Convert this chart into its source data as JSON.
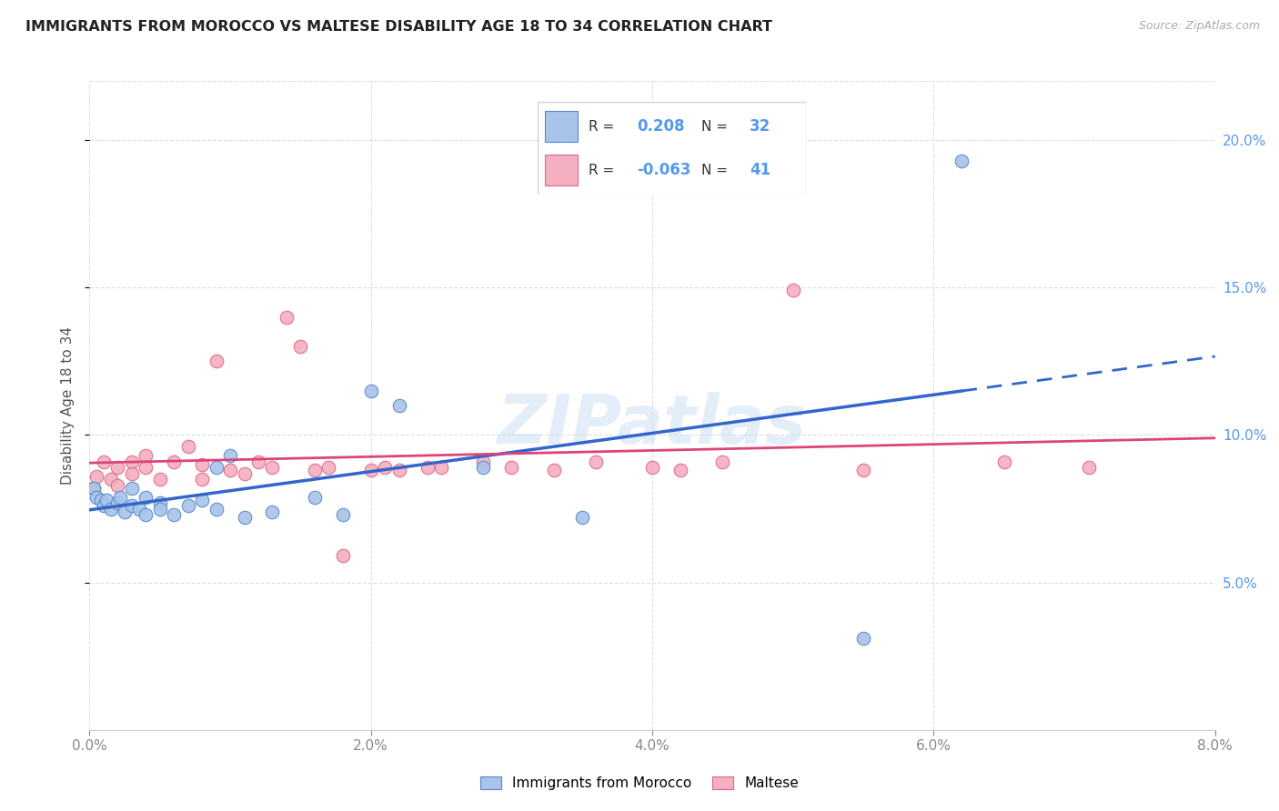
{
  "title": "IMMIGRANTS FROM MOROCCO VS MALTESE DISABILITY AGE 18 TO 34 CORRELATION CHART",
  "source": "Source: ZipAtlas.com",
  "ylabel": "Disability Age 18 to 34",
  "xlim": [
    0.0,
    0.08
  ],
  "ylim": [
    0.0,
    0.22
  ],
  "x_ticks": [
    0.0,
    0.02,
    0.04,
    0.06,
    0.08
  ],
  "y_ticks": [
    0.05,
    0.1,
    0.15,
    0.2
  ],
  "r_morocco": 0.208,
  "n_morocco": 32,
  "r_maltese": -0.063,
  "n_maltese": 41,
  "color_morocco": "#a8c4e8",
  "color_maltese": "#f4afc0",
  "edge_morocco": "#5588cc",
  "edge_maltese": "#dd6688",
  "trendline_morocco": "#3366cc",
  "trendline_maltese": "#dd4477",
  "morocco_x": [
    0.0003,
    0.0005,
    0.0008,
    0.001,
    0.0012,
    0.0015,
    0.002,
    0.0022,
    0.0025,
    0.003,
    0.003,
    0.0035,
    0.004,
    0.004,
    0.005,
    0.005,
    0.006,
    0.007,
    0.008,
    0.009,
    0.009,
    0.01,
    0.011,
    0.013,
    0.016,
    0.018,
    0.02,
    0.022,
    0.028,
    0.035,
    0.055,
    0.062
  ],
  "morocco_y": [
    0.082,
    0.079,
    0.078,
    0.076,
    0.078,
    0.075,
    0.077,
    0.079,
    0.074,
    0.076,
    0.082,
    0.075,
    0.079,
    0.073,
    0.077,
    0.075,
    0.073,
    0.076,
    0.078,
    0.075,
    0.089,
    0.093,
    0.072,
    0.074,
    0.079,
    0.073,
    0.115,
    0.11,
    0.089,
    0.072,
    0.031,
    0.193
  ],
  "maltese_x": [
    0.0003,
    0.0005,
    0.001,
    0.0015,
    0.002,
    0.002,
    0.003,
    0.003,
    0.004,
    0.004,
    0.005,
    0.006,
    0.007,
    0.008,
    0.008,
    0.009,
    0.01,
    0.011,
    0.012,
    0.013,
    0.014,
    0.015,
    0.016,
    0.017,
    0.018,
    0.02,
    0.021,
    0.022,
    0.024,
    0.025,
    0.028,
    0.03,
    0.033,
    0.036,
    0.04,
    0.042,
    0.045,
    0.05,
    0.055,
    0.065,
    0.071
  ],
  "maltese_y": [
    0.082,
    0.086,
    0.091,
    0.085,
    0.089,
    0.083,
    0.091,
    0.087,
    0.093,
    0.089,
    0.085,
    0.091,
    0.096,
    0.085,
    0.09,
    0.125,
    0.088,
    0.087,
    0.091,
    0.089,
    0.14,
    0.13,
    0.088,
    0.089,
    0.059,
    0.088,
    0.089,
    0.088,
    0.089,
    0.089,
    0.091,
    0.089,
    0.088,
    0.091,
    0.089,
    0.088,
    0.091,
    0.149,
    0.088,
    0.091,
    0.089
  ]
}
